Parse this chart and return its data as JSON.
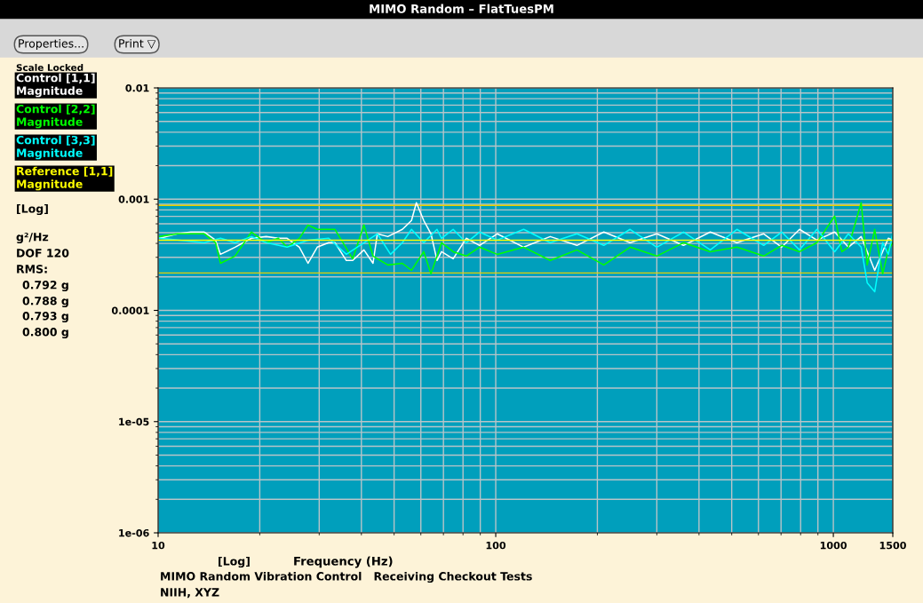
{
  "chart_data": {
    "type": "line",
    "title": "MIMO Random – FlatTuesPM",
    "xlabel": "Frequency (Hz)",
    "annotations": [
      "Properties...",
      "Print ▽",
      "Scale Locked",
      "[Log]",
      "g²/Hz",
      "DOF 120",
      "RMS:",
      "0.792 g",
      "0.788 g",
      "0.793 g",
      "0.800 g",
      "[Log]",
      "MIMO Random Vibration Control   Receiving Checkout Tests",
      "NIIH, XYZ"
    ],
    "log": "xy",
    "xlim": [
      10,
      1500
    ],
    "ylim": [
      1e-06,
      0.01
    ],
    "xticks": [
      10,
      100,
      1000,
      1500
    ],
    "yticks": [
      {
        "value": 1e-06,
        "label": "1e-06"
      },
      {
        "value": 1e-05,
        "label": "1e-05"
      },
      0.0001,
      0.001,
      0.01
    ],
    "grid": true,
    "legend": "left",
    "ref_lines": [
      {
        "axis": "y",
        "value": 0.00088,
        "color": "#e8d000"
      },
      {
        "axis": "y",
        "value": 0.000217,
        "color": "#e8d000"
      }
    ],
    "series": [
      {
        "name": "Control [1,1]\nMagnitude",
        "color": "#ffffff",
        "x": [
          10.1,
          11.4,
          12.5,
          13.7,
          14.8,
          15.3,
          16.9,
          18.9,
          20.9,
          22.7,
          24.1,
          26.2,
          27.8,
          29.6,
          32.0,
          33.4,
          36.1,
          37.7,
          40.7,
          43.3,
          44.6,
          47.9,
          52.9,
          56.3,
          58.2,
          61.2,
          64.3,
          67.0,
          69.1,
          74.8,
          81.8,
          89.5,
          101,
          121,
          145,
          174,
          209,
          250,
          300,
          360,
          432,
          518,
          622,
          703,
          794,
          894,
          1009,
          1108,
          1209,
          1326,
          1455,
          1500
        ],
        "values": [
          0.000445,
          0.000488,
          0.000506,
          0.000506,
          0.000428,
          0.000319,
          0.00037,
          0.000445,
          0.000461,
          0.000445,
          0.000445,
          0.00037,
          0.000265,
          0.00037,
          0.000406,
          0.000406,
          0.000281,
          0.000281,
          0.00035,
          0.000265,
          0.000488,
          0.000461,
          0.000535,
          0.000643,
          0.000929,
          0.000643,
          0.000488,
          0.000281,
          0.000337,
          0.000291,
          0.000445,
          0.000384,
          0.000488,
          0.00037,
          0.000461,
          0.000384,
          0.000506,
          0.000406,
          0.000488,
          0.000384,
          0.000506,
          0.000406,
          0.000488,
          0.00037,
          0.000535,
          0.000428,
          0.000506,
          0.00037,
          0.000461,
          0.000229,
          0.000445,
          0.000428
        ]
      },
      {
        "name": "Control [2,2]\nMagnitude",
        "color": "#00ff00",
        "x": [
          10.1,
          11.4,
          13.7,
          14.8,
          15.3,
          16.9,
          18.9,
          20.9,
          22.7,
          24.1,
          26.2,
          27.8,
          29.6,
          33.4,
          37.7,
          40.7,
          43.3,
          47.9,
          52.9,
          56.3,
          61.2,
          64.3,
          69.1,
          74.8,
          81.8,
          89.5,
          101,
          121,
          145,
          174,
          209,
          250,
          300,
          360,
          432,
          518,
          622,
          703,
          794,
          894,
          1009,
          1060,
          1108,
          1209,
          1260,
          1326,
          1400,
          1455,
          1500
        ],
        "values": [
          0.000461,
          0.000488,
          0.000488,
          0.000406,
          0.000265,
          0.000308,
          0.000506,
          0.000406,
          0.000445,
          0.00037,
          0.000445,
          0.000586,
          0.000535,
          0.000535,
          0.000291,
          0.000586,
          0.000308,
          0.000256,
          0.000265,
          0.000229,
          0.000337,
          0.000213,
          0.000406,
          0.000337,
          0.000308,
          0.00037,
          0.000319,
          0.00037,
          0.000281,
          0.00035,
          0.000256,
          0.00037,
          0.000308,
          0.000406,
          0.000337,
          0.00037,
          0.000308,
          0.000384,
          0.000337,
          0.000406,
          0.000705,
          0.000337,
          0.00037,
          0.000929,
          0.000256,
          0.000535,
          0.000213,
          0.00035,
          0.000406
        ]
      },
      {
        "name": "Control [3,3]\nMagnitude",
        "color": "#00ffff",
        "x": [
          10.1,
          13.7,
          15.3,
          16.9,
          18.9,
          20.9,
          24.1,
          27.8,
          32.0,
          36.1,
          40.7,
          44.6,
          48.8,
          52.9,
          56.3,
          61.2,
          67.0,
          69.1,
          74.8,
          81.8,
          89.5,
          101,
          121,
          145,
          174,
          209,
          250,
          300,
          360,
          432,
          518,
          622,
          703,
          794,
          894,
          1009,
          1108,
          1209,
          1260,
          1326,
          1400,
          1455,
          1500
        ],
        "values": [
          0.000445,
          0.000406,
          0.000445,
          0.000406,
          0.000461,
          0.000406,
          0.00037,
          0.000428,
          0.000445,
          0.000319,
          0.000406,
          0.000488,
          0.000319,
          0.000406,
          0.000535,
          0.000406,
          0.000535,
          0.000445,
          0.000535,
          0.000406,
          0.000506,
          0.000428,
          0.000535,
          0.000406,
          0.000488,
          0.000384,
          0.000535,
          0.00037,
          0.000506,
          0.00035,
          0.000535,
          0.000384,
          0.000506,
          0.00035,
          0.000535,
          0.000337,
          0.000488,
          0.00037,
          0.000177,
          0.000147,
          0.000406,
          0.000319,
          0.000488
        ]
      },
      {
        "name": "Reference [1,1]\nMagnitude",
        "color": "#ffff00",
        "x": [
          10,
          1500
        ],
        "values": [
          0.000428,
          0.000428
        ]
      }
    ]
  }
}
